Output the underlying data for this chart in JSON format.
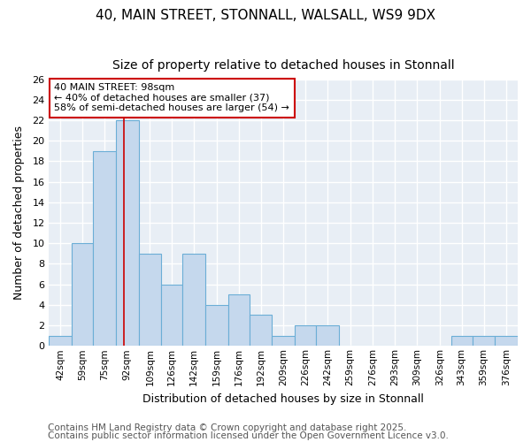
{
  "title1": "40, MAIN STREET, STONNALL, WALSALL, WS9 9DX",
  "title2": "Size of property relative to detached houses in Stonnall",
  "xlabel": "Distribution of detached houses by size in Stonnall",
  "ylabel": "Number of detached properties",
  "bin_labels": [
    "42sqm",
    "59sqm",
    "75sqm",
    "92sqm",
    "109sqm",
    "126sqm",
    "142sqm",
    "159sqm",
    "176sqm",
    "192sqm",
    "209sqm",
    "226sqm",
    "242sqm",
    "259sqm",
    "276sqm",
    "293sqm",
    "309sqm",
    "326sqm",
    "343sqm",
    "359sqm",
    "376sqm"
  ],
  "bin_edges": [
    42,
    59,
    75,
    92,
    109,
    126,
    142,
    159,
    176,
    192,
    209,
    226,
    242,
    259,
    276,
    293,
    309,
    326,
    343,
    359,
    376,
    393
  ],
  "bar_heights": [
    1,
    10,
    19,
    22,
    9,
    6,
    9,
    4,
    5,
    3,
    1,
    2,
    2,
    0,
    0,
    0,
    0,
    0,
    1,
    1,
    1
  ],
  "bar_color": "#c5d8ed",
  "bar_edgecolor": "#6baed6",
  "red_line_x": 98,
  "annotation_text": "40 MAIN STREET: 98sqm\n← 40% of detached houses are smaller (37)\n58% of semi-detached houses are larger (54) →",
  "annotation_box_color": "white",
  "annotation_box_edgecolor": "#cc0000",
  "ylim": [
    0,
    26
  ],
  "yticks": [
    0,
    2,
    4,
    6,
    8,
    10,
    12,
    14,
    16,
    18,
    20,
    22,
    24,
    26
  ],
  "footer1": "Contains HM Land Registry data © Crown copyright and database right 2025.",
  "footer2": "Contains public sector information licensed under the Open Government Licence v3.0.",
  "background_color": "#ffffff",
  "plot_bg_color": "#e8eef5",
  "grid_color": "#ffffff",
  "title_fontsize": 11,
  "subtitle_fontsize": 10,
  "axis_fontsize": 9,
  "tick_fontsize": 8,
  "annot_fontsize": 8,
  "footer_fontsize": 7.5
}
